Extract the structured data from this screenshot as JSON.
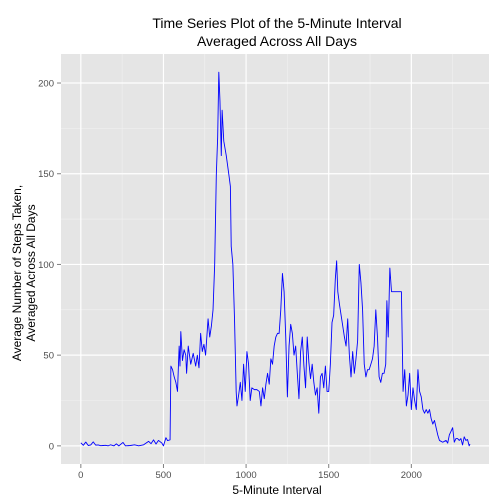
{
  "chart_data": {
    "type": "line",
    "title_lines": [
      "Time Series Plot of the 5-Minute Interval",
      "Averaged Across All Days"
    ],
    "xlabel": "5-Minute Interval",
    "ylabel_lines": [
      "Average Number of Steps Taken,",
      "Averaged Across All Days"
    ],
    "xlim": [
      -120,
      2470
    ],
    "ylim": [
      -10,
      216
    ],
    "xticks": [
      0,
      500,
      1000,
      1500,
      2000
    ],
    "yticks": [
      0,
      50,
      100,
      150,
      200
    ],
    "xtick_labels": [
      "0",
      "500",
      "1000",
      "1500",
      "2000"
    ],
    "ytick_labels": [
      "0",
      "50",
      "100",
      "150",
      "200"
    ],
    "grid": true,
    "legend": "none",
    "series": [
      {
        "color": "#0000ff",
        "points": [
          [
            0,
            1.7
          ],
          [
            15,
            0.3
          ],
          [
            30,
            2.1
          ],
          [
            45,
            0.2
          ],
          [
            60,
            0.5
          ],
          [
            75,
            2.2
          ],
          [
            90,
            0.4
          ],
          [
            105,
            0.5
          ],
          [
            120,
            0.1
          ],
          [
            135,
            0.2
          ],
          [
            150,
            0.3
          ],
          [
            165,
            0.0
          ],
          [
            180,
            0.6
          ],
          [
            200,
            0.0
          ],
          [
            215,
            1.1
          ],
          [
            230,
            0.0
          ],
          [
            255,
            1.9
          ],
          [
            270,
            0.0
          ],
          [
            300,
            0.2
          ],
          [
            325,
            0.6
          ],
          [
            350,
            0.0
          ],
          [
            380,
            0.6
          ],
          [
            410,
            2.5
          ],
          [
            425,
            1.2
          ],
          [
            440,
            3.3
          ],
          [
            455,
            1.0
          ],
          [
            470,
            3.0
          ],
          [
            490,
            1.6
          ],
          [
            500,
            0.0
          ],
          [
            515,
            4.5
          ],
          [
            525,
            2.9
          ],
          [
            540,
            3.3
          ],
          [
            545,
            44.0
          ],
          [
            555,
            42.0
          ],
          [
            565,
            38.0
          ],
          [
            575,
            35.0
          ],
          [
            585,
            30.0
          ],
          [
            595,
            55.0
          ],
          [
            600,
            44.0
          ],
          [
            605,
            63.0
          ],
          [
            615,
            47.0
          ],
          [
            625,
            53.0
          ],
          [
            635,
            50.0
          ],
          [
            640,
            40.0
          ],
          [
            650,
            55.0
          ],
          [
            665,
            45.0
          ],
          [
            680,
            51.0
          ],
          [
            695,
            44.0
          ],
          [
            705,
            50.0
          ],
          [
            715,
            43.0
          ],
          [
            725,
            62.0
          ],
          [
            735,
            52.0
          ],
          [
            745,
            56.0
          ],
          [
            755,
            50.0
          ],
          [
            770,
            70.0
          ],
          [
            780,
            60.0
          ],
          [
            790,
            66.0
          ],
          [
            800,
            75.0
          ],
          [
            810,
            100.0
          ],
          [
            820,
            150.0
          ],
          [
            828,
            170.0
          ],
          [
            835,
            206.0
          ],
          [
            842,
            190.0
          ],
          [
            850,
            160.0
          ],
          [
            855,
            185.0
          ],
          [
            865,
            168.0
          ],
          [
            880,
            160.0
          ],
          [
            895,
            150.0
          ],
          [
            905,
            143.0
          ],
          [
            910,
            110.0
          ],
          [
            920,
            100.0
          ],
          [
            930,
            70.0
          ],
          [
            940,
            30.0
          ],
          [
            945,
            22.0
          ],
          [
            955,
            28.0
          ],
          [
            965,
            35.0
          ],
          [
            975,
            25.0
          ],
          [
            985,
            45.0
          ],
          [
            995,
            30.0
          ],
          [
            1005,
            52.0
          ],
          [
            1015,
            45.0
          ],
          [
            1025,
            25.0
          ],
          [
            1035,
            32.0
          ],
          [
            1050,
            31.0
          ],
          [
            1065,
            31.0
          ],
          [
            1080,
            30.0
          ],
          [
            1090,
            22.0
          ],
          [
            1100,
            32.0
          ],
          [
            1110,
            26.0
          ],
          [
            1120,
            34.0
          ],
          [
            1130,
            40.0
          ],
          [
            1140,
            34.0
          ],
          [
            1150,
            48.0
          ],
          [
            1160,
            45.0
          ],
          [
            1170,
            55.0
          ],
          [
            1180,
            60.0
          ],
          [
            1190,
            62.0
          ],
          [
            1200,
            62.0
          ],
          [
            1210,
            75.0
          ],
          [
            1220,
            95.0
          ],
          [
            1230,
            85.0
          ],
          [
            1240,
            60.0
          ],
          [
            1250,
            27.0
          ],
          [
            1260,
            55.0
          ],
          [
            1270,
            67.0
          ],
          [
            1280,
            62.0
          ],
          [
            1290,
            50.0
          ],
          [
            1300,
            55.0
          ],
          [
            1310,
            40.0
          ],
          [
            1320,
            26.0
          ],
          [
            1330,
            52.0
          ],
          [
            1340,
            60.0
          ],
          [
            1350,
            44.0
          ],
          [
            1360,
            32.0
          ],
          [
            1370,
            60.0
          ],
          [
            1380,
            46.0
          ],
          [
            1390,
            37.0
          ],
          [
            1400,
            45.0
          ],
          [
            1410,
            35.0
          ],
          [
            1420,
            28.0
          ],
          [
            1430,
            32.0
          ],
          [
            1440,
            18.0
          ],
          [
            1450,
            38.0
          ],
          [
            1460,
            40.0
          ],
          [
            1470,
            32.0
          ],
          [
            1480,
            44.0
          ],
          [
            1490,
            30.0
          ],
          [
            1500,
            30.0
          ],
          [
            1510,
            45.0
          ],
          [
            1520,
            68.0
          ],
          [
            1530,
            72.0
          ],
          [
            1540,
            92.0
          ],
          [
            1548,
            102.0
          ],
          [
            1555,
            85.0
          ],
          [
            1565,
            78.0
          ],
          [
            1575,
            72.0
          ],
          [
            1585,
            66.0
          ],
          [
            1595,
            60.0
          ],
          [
            1605,
            55.0
          ],
          [
            1615,
            70.0
          ],
          [
            1625,
            50.0
          ],
          [
            1635,
            38.0
          ],
          [
            1645,
            52.0
          ],
          [
            1655,
            40.0
          ],
          [
            1665,
            48.0
          ],
          [
            1675,
            58.0
          ],
          [
            1685,
            100.0
          ],
          [
            1695,
            90.0
          ],
          [
            1705,
            75.0
          ],
          [
            1715,
            45.0
          ],
          [
            1725,
            38.0
          ],
          [
            1735,
            42.0
          ],
          [
            1745,
            42.0
          ],
          [
            1755,
            45.0
          ],
          [
            1765,
            48.0
          ],
          [
            1775,
            55.0
          ],
          [
            1785,
            75.0
          ],
          [
            1795,
            60.0
          ],
          [
            1805,
            38.0
          ],
          [
            1815,
            35.0
          ],
          [
            1825,
            40.0
          ],
          [
            1835,
            40.0
          ],
          [
            1845,
            45.0
          ],
          [
            1852,
            80.0
          ],
          [
            1860,
            60.0
          ],
          [
            1870,
            98.0
          ],
          [
            1880,
            85.0
          ],
          [
            1895,
            85.0
          ],
          [
            1910,
            85.0
          ],
          [
            1925,
            85.0
          ],
          [
            1940,
            85.0
          ],
          [
            1950,
            30.0
          ],
          [
            1960,
            42.0
          ],
          [
            1970,
            22.0
          ],
          [
            1980,
            28.0
          ],
          [
            1990,
            40.0
          ],
          [
            2000,
            20.0
          ],
          [
            2010,
            32.0
          ],
          [
            2020,
            25.0
          ],
          [
            2030,
            20.0
          ],
          [
            2040,
            42.0
          ],
          [
            2050,
            30.0
          ],
          [
            2060,
            27.0
          ],
          [
            2070,
            20.0
          ],
          [
            2080,
            18.0
          ],
          [
            2090,
            20.0
          ],
          [
            2100,
            18.0
          ],
          [
            2110,
            20.0
          ],
          [
            2120,
            15.0
          ],
          [
            2130,
            12.0
          ],
          [
            2140,
            14.0
          ],
          [
            2150,
            10.0
          ],
          [
            2160,
            6.0
          ],
          [
            2170,
            3.0
          ],
          [
            2180,
            2.5
          ],
          [
            2190,
            2.0
          ],
          [
            2200,
            2.5
          ],
          [
            2210,
            3.0
          ],
          [
            2220,
            1.5
          ],
          [
            2230,
            6.0
          ],
          [
            2240,
            8.0
          ],
          [
            2250,
            10.0
          ],
          [
            2260,
            2.0
          ],
          [
            2270,
            4.0
          ],
          [
            2280,
            4.0
          ],
          [
            2290,
            3.0
          ],
          [
            2300,
            4.0
          ],
          [
            2310,
            0.5
          ],
          [
            2320,
            5.0
          ],
          [
            2330,
            3.0
          ],
          [
            2340,
            3.5
          ],
          [
            2350,
            0.0
          ],
          [
            2355,
            1.0
          ]
        ]
      }
    ]
  }
}
